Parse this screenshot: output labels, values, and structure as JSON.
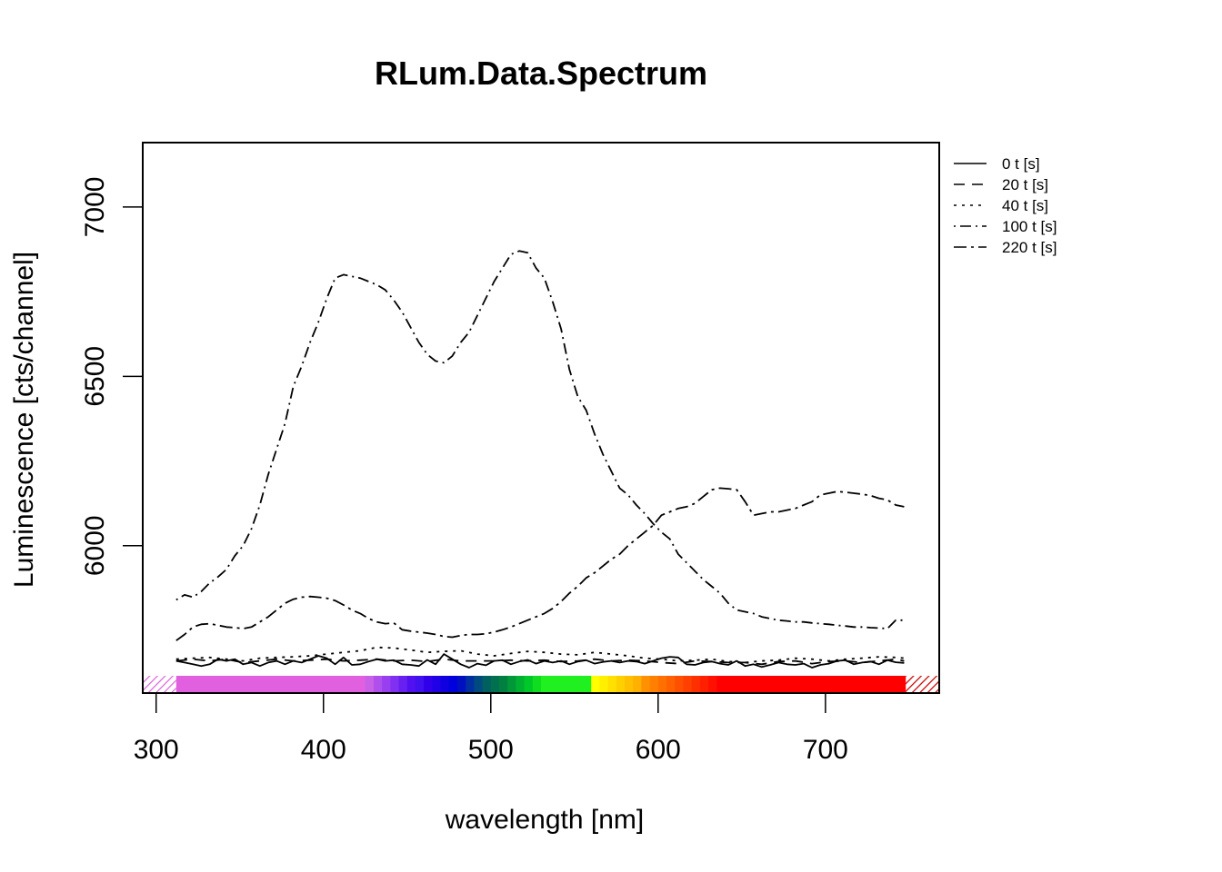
{
  "chart_data": {
    "type": "line",
    "title": "RLum.Data.Spectrum",
    "xlabel": "wavelength [nm]",
    "ylabel": "Luminescence [cts/channel]",
    "xlim": [
      292,
      768
    ],
    "ylim": [
      5565,
      7190
    ],
    "x_ticks": [
      300,
      400,
      500,
      600,
      700
    ],
    "y_ticks": [
      6000,
      6500,
      7000
    ],
    "legend_position": "right-outside-top",
    "grid": false,
    "color_bar": {
      "violet_hatch": "#dd66dd",
      "red_hatch": "#cc0000",
      "segments": [
        {
          "from": 312,
          "to": 425,
          "color": "#e060e0"
        },
        {
          "from": 425,
          "to": 430,
          "color": "#c860e8"
        },
        {
          "from": 430,
          "to": 435,
          "color": "#b050ec"
        },
        {
          "from": 435,
          "to": 440,
          "color": "#9840f0"
        },
        {
          "from": 440,
          "to": 445,
          "color": "#8030f0"
        },
        {
          "from": 445,
          "to": 450,
          "color": "#6820f0"
        },
        {
          "from": 450,
          "to": 455,
          "color": "#5010f0"
        },
        {
          "from": 455,
          "to": 460,
          "color": "#4010ee"
        },
        {
          "from": 460,
          "to": 465,
          "color": "#3000ea"
        },
        {
          "from": 465,
          "to": 470,
          "color": "#2000e6"
        },
        {
          "from": 470,
          "to": 475,
          "color": "#1000e0"
        },
        {
          "from": 475,
          "to": 480,
          "color": "#0000dc"
        },
        {
          "from": 480,
          "to": 485,
          "color": "#0010c0"
        },
        {
          "from": 485,
          "to": 490,
          "color": "#0030a0"
        },
        {
          "from": 490,
          "to": 495,
          "color": "#004a80"
        },
        {
          "from": 495,
          "to": 500,
          "color": "#006060"
        },
        {
          "from": 500,
          "to": 505,
          "color": "#007050"
        },
        {
          "from": 505,
          "to": 510,
          "color": "#008040"
        },
        {
          "from": 510,
          "to": 515,
          "color": "#009838"
        },
        {
          "from": 515,
          "to": 520,
          "color": "#00b030"
        },
        {
          "from": 520,
          "to": 525,
          "color": "#00c828"
        },
        {
          "from": 525,
          "to": 530,
          "color": "#10dc20"
        },
        {
          "from": 530,
          "to": 560,
          "color": "#20f020"
        },
        {
          "from": 560,
          "to": 565,
          "color": "#ffff00"
        },
        {
          "from": 565,
          "to": 570,
          "color": "#fff000"
        },
        {
          "from": 570,
          "to": 575,
          "color": "#ffe000"
        },
        {
          "from": 575,
          "to": 580,
          "color": "#ffd000"
        },
        {
          "from": 580,
          "to": 585,
          "color": "#ffc000"
        },
        {
          "from": 585,
          "to": 590,
          "color": "#ffb000"
        },
        {
          "from": 590,
          "to": 595,
          "color": "#ff9000"
        },
        {
          "from": 595,
          "to": 600,
          "color": "#ff8000"
        },
        {
          "from": 600,
          "to": 605,
          "color": "#ff7000"
        },
        {
          "from": 605,
          "to": 610,
          "color": "#ff6000"
        },
        {
          "from": 610,
          "to": 615,
          "color": "#ff5000"
        },
        {
          "from": 615,
          "to": 620,
          "color": "#ff4000"
        },
        {
          "from": 620,
          "to": 625,
          "color": "#ff3000"
        },
        {
          "from": 625,
          "to": 630,
          "color": "#ff2000"
        },
        {
          "from": 630,
          "to": 635,
          "color": "#ff1000"
        },
        {
          "from": 635,
          "to": 748,
          "color": "#ff0000"
        }
      ]
    },
    "series": [
      {
        "name": "0 t [s]",
        "dash": "solid",
        "x": [
          312,
          317,
          322,
          327,
          332,
          337,
          342,
          347,
          352,
          357,
          362,
          367,
          372,
          377,
          382,
          387,
          392,
          397,
          402,
          407,
          412,
          417,
          422,
          427,
          432,
          437,
          442,
          447,
          452,
          457,
          462,
          467,
          472,
          477,
          482,
          487,
          492,
          497,
          502,
          507,
          512,
          517,
          522,
          527,
          532,
          537,
          542,
          547,
          552,
          557,
          562,
          567,
          572,
          577,
          582,
          587,
          592,
          597,
          602,
          607,
          612,
          617,
          622,
          627,
          632,
          637,
          642,
          647,
          652,
          657,
          662,
          667,
          672,
          677,
          682,
          687,
          692,
          697,
          702,
          707,
          712,
          717,
          722,
          727,
          732,
          737,
          742,
          747
        ],
        "y": [
          5660,
          5655,
          5650,
          5645,
          5650,
          5665,
          5660,
          5665,
          5650,
          5655,
          5645,
          5655,
          5660,
          5650,
          5660,
          5655,
          5665,
          5675,
          5668,
          5650,
          5670,
          5648,
          5650,
          5658,
          5665,
          5660,
          5662,
          5650,
          5648,
          5645,
          5663,
          5650,
          5680,
          5665,
          5650,
          5640,
          5652,
          5647,
          5660,
          5662,
          5650,
          5658,
          5663,
          5652,
          5660,
          5655,
          5660,
          5650,
          5658,
          5662,
          5652,
          5657,
          5660,
          5655,
          5660,
          5658,
          5652,
          5660,
          5668,
          5672,
          5670,
          5650,
          5648,
          5655,
          5658,
          5652,
          5648,
          5660,
          5645,
          5650,
          5642,
          5648,
          5655,
          5650,
          5648,
          5652,
          5640,
          5648,
          5652,
          5660,
          5662,
          5650,
          5655,
          5658,
          5650,
          5662,
          5656,
          5654
        ]
      },
      {
        "name": "20 t [s]",
        "dash": "12,8",
        "x": [
          312,
          322,
          332,
          342,
          352,
          362,
          372,
          382,
          392,
          402,
          412,
          422,
          432,
          442,
          452,
          462,
          472,
          482,
          492,
          502,
          512,
          522,
          532,
          542,
          552,
          562,
          572,
          582,
          592,
          602,
          612,
          622,
          632,
          642,
          652,
          662,
          672,
          682,
          692,
          702,
          712,
          722,
          732,
          742,
          747
        ],
        "y": [
          5660,
          5665,
          5660,
          5665,
          5655,
          5660,
          5665,
          5660,
          5662,
          5665,
          5660,
          5662,
          5665,
          5660,
          5662,
          5658,
          5665,
          5660,
          5660,
          5660,
          5662,
          5660,
          5662,
          5658,
          5660,
          5665,
          5660,
          5662,
          5660,
          5655,
          5652,
          5660,
          5658,
          5655,
          5655,
          5650,
          5658,
          5660,
          5652,
          5658,
          5660,
          5655,
          5660,
          5665,
          5660
        ]
      },
      {
        "name": "40 t [s]",
        "dash": "3,6",
        "x": [
          312,
          322,
          332,
          342,
          352,
          362,
          372,
          382,
          392,
          402,
          412,
          422,
          432,
          442,
          452,
          462,
          472,
          482,
          492,
          502,
          512,
          522,
          532,
          542,
          552,
          562,
          572,
          582,
          592,
          602,
          612,
          622,
          632,
          642,
          652,
          662,
          672,
          682,
          692,
          702,
          712,
          722,
          732,
          742,
          747
        ],
        "y": [
          5665,
          5668,
          5670,
          5665,
          5660,
          5668,
          5670,
          5672,
          5675,
          5680,
          5685,
          5690,
          5700,
          5698,
          5692,
          5685,
          5688,
          5690,
          5680,
          5675,
          5682,
          5688,
          5685,
          5680,
          5678,
          5685,
          5680,
          5675,
          5668,
          5665,
          5660,
          5662,
          5665,
          5658,
          5655,
          5660,
          5662,
          5668,
          5665,
          5660,
          5665,
          5668,
          5672,
          5670,
          5668
        ]
      },
      {
        "name": "100 t [s]",
        "dash": "2,5,12,5",
        "x": [
          312,
          317,
          322,
          327,
          332,
          337,
          342,
          347,
          352,
          357,
          362,
          367,
          372,
          377,
          382,
          387,
          392,
          397,
          402,
          407,
          412,
          417,
          422,
          427,
          432,
          437,
          442,
          447,
          452,
          457,
          462,
          467,
          472,
          477,
          482,
          487,
          492,
          497,
          502,
          507,
          512,
          517,
          522,
          527,
          532,
          537,
          542,
          547,
          552,
          557,
          562,
          567,
          572,
          577,
          582,
          587,
          592,
          597,
          602,
          607,
          612,
          617,
          622,
          627,
          632,
          637,
          642,
          647,
          652,
          657,
          662,
          667,
          672,
          677,
          682,
          687,
          692,
          697,
          702,
          707,
          712,
          717,
          722,
          727,
          732,
          737,
          742,
          747
        ],
        "y": [
          5840,
          5855,
          5848,
          5865,
          5890,
          5908,
          5930,
          5970,
          6000,
          6050,
          6120,
          6210,
          6285,
          6360,
          6470,
          6530,
          6600,
          6660,
          6730,
          6790,
          6800,
          6795,
          6790,
          6780,
          6770,
          6755,
          6725,
          6690,
          6645,
          6600,
          6565,
          6545,
          6540,
          6560,
          6600,
          6630,
          6680,
          6730,
          6780,
          6820,
          6860,
          6870,
          6865,
          6820,
          6790,
          6720,
          6640,
          6520,
          6440,
          6400,
          6330,
          6270,
          6220,
          6170,
          6150,
          6120,
          6095,
          6065,
          6040,
          6020,
          5975,
          5950,
          5925,
          5900,
          5880,
          5860,
          5830,
          5810,
          5805,
          5800,
          5790,
          5785,
          5780,
          5778,
          5775,
          5775,
          5772,
          5770,
          5768,
          5765,
          5763,
          5760,
          5760,
          5758,
          5757,
          5755,
          5780,
          5780
        ]
      },
      {
        "name": "220 t [s]",
        "dash": "14,5,3,5",
        "x": [
          312,
          317,
          322,
          327,
          332,
          337,
          342,
          347,
          352,
          357,
          362,
          367,
          372,
          377,
          382,
          387,
          392,
          397,
          402,
          407,
          412,
          417,
          422,
          427,
          432,
          437,
          442,
          447,
          452,
          457,
          462,
          467,
          472,
          477,
          482,
          487,
          492,
          497,
          502,
          507,
          512,
          517,
          522,
          527,
          532,
          537,
          542,
          547,
          552,
          557,
          562,
          567,
          572,
          577,
          582,
          587,
          592,
          597,
          602,
          607,
          612,
          617,
          622,
          627,
          632,
          637,
          642,
          647,
          652,
          657,
          662,
          667,
          672,
          677,
          682,
          687,
          692,
          697,
          702,
          707,
          712,
          717,
          722,
          727,
          732,
          737,
          742,
          747
        ],
        "y": [
          5720,
          5738,
          5760,
          5768,
          5770,
          5765,
          5760,
          5758,
          5755,
          5760,
          5775,
          5790,
          5810,
          5830,
          5842,
          5848,
          5850,
          5848,
          5845,
          5838,
          5825,
          5810,
          5800,
          5785,
          5775,
          5770,
          5772,
          5752,
          5748,
          5745,
          5742,
          5738,
          5732,
          5730,
          5735,
          5738,
          5738,
          5740,
          5745,
          5752,
          5760,
          5770,
          5780,
          5790,
          5800,
          5815,
          5835,
          5860,
          5880,
          5905,
          5920,
          5940,
          5960,
          5975,
          6000,
          6020,
          6040,
          6060,
          6090,
          6100,
          6110,
          6115,
          6125,
          6145,
          6165,
          6170,
          6168,
          6165,
          6130,
          6090,
          6095,
          6100,
          6100,
          6105,
          6110,
          6120,
          6130,
          6150,
          6155,
          6160,
          6158,
          6155,
          6152,
          6148,
          6140,
          6135,
          6120,
          6115
        ]
      }
    ]
  }
}
